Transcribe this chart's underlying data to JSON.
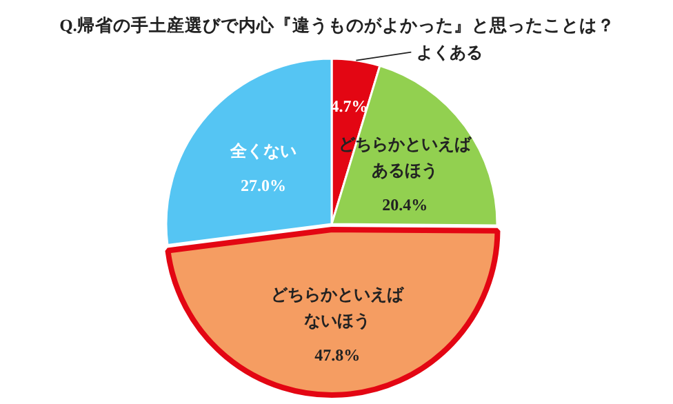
{
  "chart_data": {
    "type": "pie",
    "title": "Q.帰省の手土産選びで内心『違うものがよかった』と思ったことは？",
    "categories": [
      "よくある",
      "どちらかといえばあるほう",
      "どちらかといえばないほう",
      "全くない"
    ],
    "values": [
      4.7,
      20.4,
      47.8,
      27.0
    ],
    "value_labels": [
      "4.7%",
      "20.4%",
      "47.8%",
      "27.0%"
    ],
    "colors": [
      "#e30613",
      "#92d050",
      "#f59d62",
      "#55c5f3"
    ]
  }
}
